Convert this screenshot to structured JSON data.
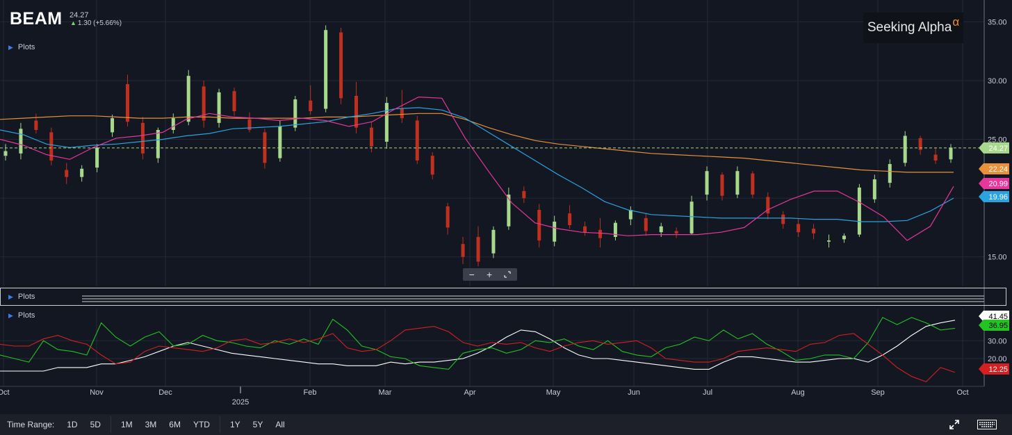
{
  "header": {
    "ticker": "BEAM",
    "price": "24.27",
    "change": "1.30 (+5.66%)"
  },
  "brand": {
    "name": "Seeking Alpha",
    "symbol": "α"
  },
  "panels": {
    "plots_label": "Plots"
  },
  "zoom": {
    "minus": "−",
    "plus": "+"
  },
  "toolbar": {
    "time_range_label": "Time Range:",
    "ranges": [
      "1D",
      "5D",
      "1M",
      "3M",
      "6M",
      "YTD",
      "1Y",
      "5Y",
      "All"
    ]
  },
  "colors": {
    "background": "#131722",
    "up": "#a8d88c",
    "down": "#c0301e",
    "ma_fast": "#e6379c",
    "ma_mid": "#2aa3e0",
    "ma_slow": "#e8913a",
    "di_plus": "#22c322",
    "di_minus": "#d42020",
    "adx": "#ffffff"
  },
  "chart_data": [
    {
      "type": "candlestick",
      "title": "BEAM",
      "x_labels": [
        "Oct",
        "Nov",
        "Dec",
        "2025",
        "Feb",
        "Mar",
        "Apr",
        "May",
        "Jun",
        "Jul",
        "Aug",
        "Sep",
        "Oct"
      ],
      "y_ticks": [
        "15.00",
        "20.00",
        "25.00",
        "30.00",
        "35.00"
      ],
      "ylim": [
        12.5,
        36.5
      ],
      "grid": true,
      "last_price": 24.27,
      "indicators": [
        {
          "name": "MA slow",
          "last": "22.24",
          "color": "#e8913a",
          "values": [
            26.7,
            26.8,
            26.9,
            27.0,
            27.0,
            26.9,
            26.8,
            26.8,
            26.9,
            26.9,
            26.8,
            26.8,
            26.8,
            26.8,
            26.9,
            26.9,
            27.0,
            27.1,
            27.2,
            27.2,
            26.7,
            26.0,
            25.4,
            24.9,
            24.6,
            24.4,
            24.2,
            24.0,
            23.8,
            23.7,
            23.6,
            23.5,
            23.4,
            23.2,
            23.0,
            22.8,
            22.6,
            22.4,
            22.3,
            22.2,
            22.2,
            22.2
          ]
        },
        {
          "name": "MA mid",
          "last": "19.96",
          "color": "#2aa3e0",
          "values": [
            25.8,
            25.4,
            24.6,
            24.3,
            24.5,
            24.6,
            24.8,
            25.0,
            25.3,
            25.5,
            25.9,
            26.0,
            26.1,
            26.3,
            26.5,
            26.9,
            27.2,
            27.6,
            27.7,
            27.5,
            26.8,
            25.6,
            24.4,
            23.2,
            22.0,
            20.9,
            19.7,
            19.0,
            18.6,
            18.5,
            18.4,
            18.3,
            18.3,
            18.3,
            18.3,
            18.2,
            18.2,
            18.0,
            18.0,
            18.1,
            18.9,
            20.0
          ]
        },
        {
          "name": "MA fast",
          "last": "20.99",
          "color": "#e6379c",
          "values": [
            25.0,
            24.5,
            23.7,
            23.3,
            24.3,
            25.1,
            25.3,
            25.6,
            26.7,
            27.2,
            26.9,
            26.8,
            26.6,
            26.8,
            26.6,
            26.1,
            26.5,
            27.6,
            28.6,
            28.5,
            25.1,
            22.3,
            19.6,
            17.9,
            17.4,
            17.1,
            17.0,
            16.8,
            16.9,
            16.9,
            16.9,
            17.1,
            17.5,
            19.0,
            19.9,
            20.6,
            20.6,
            19.6,
            18.4,
            16.4,
            17.6,
            21.0
          ]
        }
      ],
      "candles": [
        {
          "o": 23.6,
          "h": 24.6,
          "l": 23.2,
          "c": 24.0
        },
        {
          "o": 23.8,
          "h": 26.4,
          "l": 23.3,
          "c": 25.9
        },
        {
          "o": 26.6,
          "h": 27.2,
          "l": 25.5,
          "c": 25.8
        },
        {
          "o": 25.6,
          "h": 26.0,
          "l": 22.8,
          "c": 23.2
        },
        {
          "o": 22.4,
          "h": 23.0,
          "l": 21.2,
          "c": 21.8
        },
        {
          "o": 21.8,
          "h": 22.8,
          "l": 21.4,
          "c": 22.5
        },
        {
          "o": 22.6,
          "h": 24.6,
          "l": 22.2,
          "c": 24.3
        },
        {
          "o": 25.6,
          "h": 27.1,
          "l": 25.2,
          "c": 26.8
        },
        {
          "o": 29.7,
          "h": 30.5,
          "l": 26.1,
          "c": 26.5
        },
        {
          "o": 26.4,
          "h": 26.9,
          "l": 23.3,
          "c": 23.8
        },
        {
          "o": 23.4,
          "h": 26.0,
          "l": 23.0,
          "c": 25.8
        },
        {
          "o": 25.8,
          "h": 27.2,
          "l": 25.5,
          "c": 26.8
        },
        {
          "o": 26.5,
          "h": 30.9,
          "l": 26.2,
          "c": 30.4
        },
        {
          "o": 29.5,
          "h": 30.0,
          "l": 26.0,
          "c": 26.6
        },
        {
          "o": 26.4,
          "h": 29.3,
          "l": 26.0,
          "c": 29.0
        },
        {
          "o": 29.1,
          "h": 29.4,
          "l": 27.0,
          "c": 27.4
        },
        {
          "o": 26.7,
          "h": 27.3,
          "l": 25.6,
          "c": 25.8
        },
        {
          "o": 25.6,
          "h": 25.9,
          "l": 22.5,
          "c": 23.0
        },
        {
          "o": 23.4,
          "h": 26.6,
          "l": 23.1,
          "c": 26.1
        },
        {
          "o": 26.0,
          "h": 28.7,
          "l": 25.7,
          "c": 28.4
        },
        {
          "o": 28.3,
          "h": 29.6,
          "l": 27.1,
          "c": 27.4
        },
        {
          "o": 27.6,
          "h": 34.7,
          "l": 27.3,
          "c": 34.3
        },
        {
          "o": 34.1,
          "h": 34.5,
          "l": 28.0,
          "c": 28.5
        },
        {
          "o": 28.7,
          "h": 29.9,
          "l": 25.5,
          "c": 26.0
        },
        {
          "o": 26.0,
          "h": 26.5,
          "l": 23.9,
          "c": 24.4
        },
        {
          "o": 24.8,
          "h": 28.6,
          "l": 24.2,
          "c": 28.1
        },
        {
          "o": 27.6,
          "h": 29.2,
          "l": 26.4,
          "c": 26.8
        },
        {
          "o": 26.6,
          "h": 27.0,
          "l": 22.9,
          "c": 23.2
        },
        {
          "o": 23.6,
          "h": 23.9,
          "l": 21.6,
          "c": 22.0
        },
        {
          "o": 19.3,
          "h": 19.6,
          "l": 16.9,
          "c": 17.5
        },
        {
          "o": 16.1,
          "h": 16.7,
          "l": 14.4,
          "c": 15.0
        },
        {
          "o": 16.7,
          "h": 17.6,
          "l": 14.2,
          "c": 14.6
        },
        {
          "o": 15.3,
          "h": 17.6,
          "l": 14.9,
          "c": 17.3
        },
        {
          "o": 17.6,
          "h": 20.9,
          "l": 17.3,
          "c": 20.3
        },
        {
          "o": 20.6,
          "h": 21.0,
          "l": 19.6,
          "c": 20.0
        },
        {
          "o": 19.0,
          "h": 19.5,
          "l": 15.8,
          "c": 16.4
        },
        {
          "o": 16.3,
          "h": 18.5,
          "l": 15.9,
          "c": 18.0
        },
        {
          "o": 18.7,
          "h": 19.4,
          "l": 17.4,
          "c": 17.7
        },
        {
          "o": 17.6,
          "h": 18.0,
          "l": 16.8,
          "c": 17.1
        },
        {
          "o": 17.3,
          "h": 18.3,
          "l": 15.8,
          "c": 16.6
        },
        {
          "o": 16.7,
          "h": 18.1,
          "l": 16.4,
          "c": 17.9
        },
        {
          "o": 18.2,
          "h": 19.3,
          "l": 17.7,
          "c": 19.0
        },
        {
          "o": 18.3,
          "h": 18.7,
          "l": 16.8,
          "c": 17.2
        },
        {
          "o": 17.1,
          "h": 17.9,
          "l": 16.7,
          "c": 17.6
        },
        {
          "o": 17.2,
          "h": 17.5,
          "l": 16.6,
          "c": 17.0
        },
        {
          "o": 17.0,
          "h": 20.2,
          "l": 16.9,
          "c": 19.7
        },
        {
          "o": 20.3,
          "h": 22.7,
          "l": 19.8,
          "c": 22.3
        },
        {
          "o": 22.0,
          "h": 22.2,
          "l": 19.8,
          "c": 20.2
        },
        {
          "o": 20.3,
          "h": 22.7,
          "l": 20.0,
          "c": 22.3
        },
        {
          "o": 22.1,
          "h": 22.3,
          "l": 20.0,
          "c": 20.3
        },
        {
          "o": 20.1,
          "h": 20.5,
          "l": 18.2,
          "c": 18.7
        },
        {
          "o": 18.6,
          "h": 18.9,
          "l": 17.4,
          "c": 17.8
        },
        {
          "o": 17.8,
          "h": 18.3,
          "l": 16.7,
          "c": 17.1
        },
        {
          "o": 17.4,
          "h": 17.8,
          "l": 16.5,
          "c": 17.0
        },
        {
          "o": 16.3,
          "h": 16.9,
          "l": 15.8,
          "c": 16.4
        },
        {
          "o": 16.5,
          "h": 17.0,
          "l": 16.2,
          "c": 16.8
        },
        {
          "o": 16.9,
          "h": 21.2,
          "l": 16.7,
          "c": 20.9
        },
        {
          "o": 19.9,
          "h": 22.0,
          "l": 19.6,
          "c": 21.6
        },
        {
          "o": 21.3,
          "h": 23.3,
          "l": 20.9,
          "c": 22.9
        },
        {
          "o": 23.0,
          "h": 25.7,
          "l": 22.7,
          "c": 25.3
        },
        {
          "o": 25.1,
          "h": 25.3,
          "l": 23.7,
          "c": 24.1
        },
        {
          "o": 23.7,
          "h": 24.3,
          "l": 22.9,
          "c": 23.2
        },
        {
          "o": 23.3,
          "h": 24.6,
          "l": 23.0,
          "c": 24.3
        }
      ]
    },
    {
      "type": "line",
      "title": "",
      "y_ticks": [
        "20.00",
        "30.00"
      ],
      "ylim": [
        6,
        48
      ],
      "grid": true,
      "series": [
        {
          "name": "",
          "last": "41.45",
          "color": "#ffffff",
          "values": [
            13,
            13,
            13,
            13,
            15,
            15,
            15,
            17,
            17,
            19,
            21,
            24,
            27,
            29,
            27,
            25,
            23,
            22,
            21,
            20,
            19,
            18,
            17,
            17,
            16,
            16,
            16,
            18,
            17,
            18,
            18,
            19,
            20,
            23,
            27,
            32,
            36,
            35,
            31,
            26,
            22,
            20,
            20,
            19,
            18,
            17,
            16,
            15,
            14,
            14,
            18,
            21,
            21,
            20,
            19,
            18,
            18,
            19,
            20,
            20,
            18,
            22,
            27,
            33,
            38,
            40,
            41.45
          ]
        },
        {
          "name": "",
          "last": "36.95",
          "color": "#22c322",
          "values": [
            22,
            20,
            18,
            30,
            25,
            24,
            22,
            40,
            32,
            27,
            32,
            35,
            27,
            28,
            33,
            30,
            29,
            27,
            26,
            30,
            28,
            31,
            28,
            42,
            36,
            27,
            25,
            21,
            20,
            16,
            15,
            14,
            23,
            25,
            26,
            23,
            25,
            30,
            29,
            31,
            27,
            25,
            30,
            24,
            22,
            21,
            26,
            28,
            32,
            30,
            36,
            31,
            34,
            28,
            24,
            19,
            20,
            22,
            22,
            20,
            29,
            43,
            39,
            43,
            40,
            36,
            36.95
          ]
        },
        {
          "name": "",
          "last": "12.25",
          "color": "#d42020",
          "values": [
            28,
            27,
            27,
            31,
            33,
            30,
            28,
            22,
            17,
            18,
            24,
            27,
            26,
            25,
            24,
            26,
            30,
            31,
            28,
            29,
            31,
            29,
            31,
            34,
            26,
            24,
            25,
            30,
            36,
            37,
            38,
            35,
            29,
            27,
            29,
            28,
            29,
            26,
            24,
            27,
            29,
            30,
            28,
            29,
            30,
            26,
            20,
            19,
            18,
            18,
            20,
            24,
            25,
            26,
            25,
            24,
            28,
            29,
            33,
            34,
            28,
            22,
            15,
            10,
            7,
            15,
            12.25
          ]
        }
      ]
    }
  ]
}
